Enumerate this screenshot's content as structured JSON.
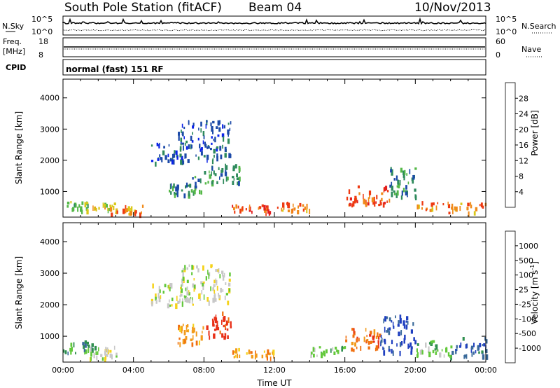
{
  "header": {
    "station": "South Pole Station (fitACF)",
    "beam": "Beam 04",
    "date": "10/Nov/2013"
  },
  "top_panels": {
    "nsky_label": "N.Sky",
    "nsky_ticks": [
      "10^5",
      "10^0"
    ],
    "nsearch_label": "N.Search",
    "nsearch_ticks": [
      "10^5",
      "10^0"
    ],
    "freq_label_1": "Freq.",
    "freq_label_2": "[MHz]",
    "freq_ticks": [
      "18",
      "8"
    ],
    "nave_label": "Nave",
    "nave_ticks": [
      "60",
      "0"
    ],
    "cpid_label": "CPID",
    "cpid_text": "normal (fast) 151 RF"
  },
  "chart_data": [
    {
      "type": "heatmap",
      "name": "power-panel",
      "ylabel": "Slant Range [km]",
      "y_ticks": [
        "1000",
        "2000",
        "3000",
        "4000"
      ],
      "ylim": [
        180,
        4600
      ],
      "x_ticks": [
        "00:00",
        "04:00",
        "08:00",
        "12:00",
        "16:00",
        "20:00",
        "00:00"
      ],
      "colorbar": {
        "label": "Power [dB]",
        "ticks": [
          "4",
          "8",
          "12",
          "16",
          "20",
          "24",
          "28"
        ],
        "colors": [
          "#0a22e8",
          "#1c4aa8",
          "#2e8a5c",
          "#55b848",
          "#d9c81a",
          "#f08a1a",
          "#ee3a12",
          "#e31f1f"
        ]
      },
      "scatter_regions": [
        {
          "x": [
            0.0,
            1.5
          ],
          "y": [
            400,
            700
          ],
          "level": 3
        },
        {
          "x": [
            1.5,
            3.0
          ],
          "y": [
            450,
            650
          ],
          "level": 4
        },
        {
          "x": [
            2.5,
            4.5
          ],
          "y": [
            300,
            600
          ],
          "level": 5
        },
        {
          "x": [
            5.0,
            7.0
          ],
          "y": [
            1900,
            2600
          ],
          "level": 1
        },
        {
          "x": [
            6.5,
            9.5
          ],
          "y": [
            2000,
            3300
          ],
          "level": 1
        },
        {
          "x": [
            6.0,
            8.0
          ],
          "y": [
            900,
            1500
          ],
          "level": 2
        },
        {
          "x": [
            8.0,
            10.0
          ],
          "y": [
            1200,
            1900
          ],
          "level": 2
        },
        {
          "x": [
            9.5,
            12.0
          ],
          "y": [
            350,
            600
          ],
          "level": 6
        },
        {
          "x": [
            12.0,
            14.0
          ],
          "y": [
            400,
            700
          ],
          "level": 5
        },
        {
          "x": [
            16.0,
            18.5
          ],
          "y": [
            600,
            1200
          ],
          "level": 6
        },
        {
          "x": [
            18.5,
            20.0
          ],
          "y": [
            800,
            1800
          ],
          "level": 2
        },
        {
          "x": [
            20.0,
            24.0
          ],
          "y": [
            350,
            700
          ],
          "level": 5
        }
      ]
    },
    {
      "type": "heatmap",
      "name": "velocity-panel",
      "ylabel": "Slant Range [km]",
      "y_ticks": [
        "1000",
        "2000",
        "3000",
        "4000"
      ],
      "ylim": [
        180,
        4600
      ],
      "xlabel": "Time UT",
      "x_ticks": [
        "00:00",
        "04:00",
        "08:00",
        "12:00",
        "16:00",
        "20:00",
        "00:00"
      ],
      "colorbar": {
        "label": "Velocity [m s",
        "label_exp": "-1",
        "label_close": "]",
        "ticks": [
          "1000",
          "500",
          "100",
          "25",
          "-25",
          "-100",
          "-500",
          "-1000"
        ],
        "colors": [
          "#2040c0",
          "#3a6a9a",
          "#2f8f4f",
          "#62c83a",
          "#c8c8c8",
          "#f5d21a",
          "#f29a1a",
          "#f07010",
          "#e83018"
        ]
      },
      "scatter_regions": [
        {
          "x": [
            0.0,
            2.0
          ],
          "y": [
            500,
            900
          ],
          "level": 2
        },
        {
          "x": [
            1.5,
            3.0
          ],
          "y": [
            300,
            700
          ],
          "level": 4
        },
        {
          "x": [
            5.0,
            7.5
          ],
          "y": [
            2000,
            2700
          ],
          "level": 4
        },
        {
          "x": [
            6.5,
            9.5
          ],
          "y": [
            2100,
            3300
          ],
          "level": 4
        },
        {
          "x": [
            6.5,
            8.0
          ],
          "y": [
            800,
            1400
          ],
          "level": 6
        },
        {
          "x": [
            8.0,
            9.5
          ],
          "y": [
            1000,
            1800
          ],
          "level": 8
        },
        {
          "x": [
            9.5,
            12.0
          ],
          "y": [
            350,
            650
          ],
          "level": 6
        },
        {
          "x": [
            14.0,
            16.0
          ],
          "y": [
            400,
            700
          ],
          "level": 3
        },
        {
          "x": [
            16.0,
            18.0
          ],
          "y": [
            600,
            1300
          ],
          "level": 7
        },
        {
          "x": [
            18.0,
            20.0
          ],
          "y": [
            500,
            1700
          ],
          "level": 0
        },
        {
          "x": [
            20.0,
            22.0
          ],
          "y": [
            400,
            900
          ],
          "level": 3
        },
        {
          "x": [
            22.0,
            24.0
          ],
          "y": [
            400,
            1000
          ],
          "level": 1
        }
      ]
    }
  ]
}
